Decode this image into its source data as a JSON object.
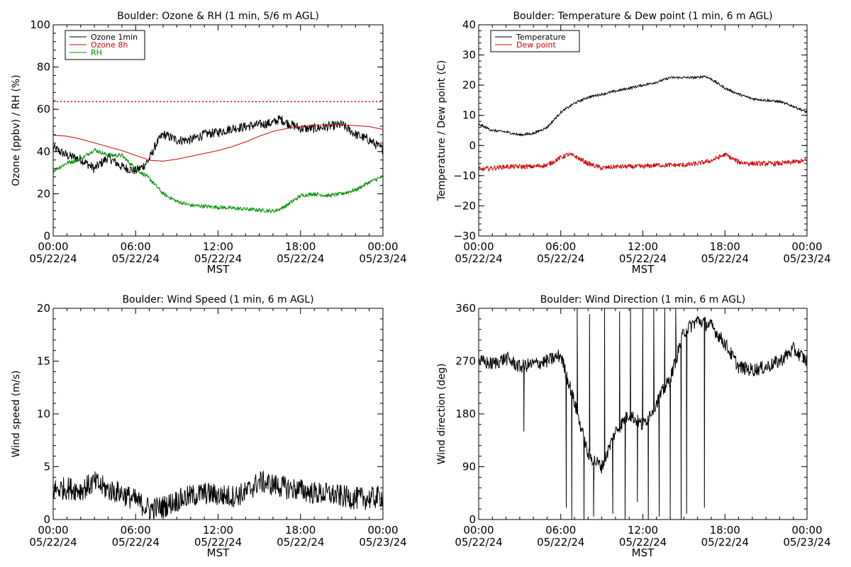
{
  "chart_data": [
    {
      "type": "line",
      "title": "Boulder: Ozone & RH (1 min, 5/6 m AGL)",
      "ylabel": "Ozone (ppbv) / RH (%)",
      "xlabel": "MST",
      "xlim": [
        "00:00 05/22/24",
        "00:00 05/23/24"
      ],
      "ylim": [
        0,
        110
      ],
      "yticks": [
        "0",
        "20",
        "40",
        "60",
        "80",
        "100"
      ],
      "xticks": [
        {
          "time": "00:00",
          "date": "05/22/24"
        },
        {
          "time": "06:00",
          "date": "05/22/24"
        },
        {
          "time": "12:00",
          "date": "05/22/24"
        },
        {
          "time": "18:00",
          "date": "05/22/24"
        },
        {
          "time": "00:00",
          "date": "05/23/24"
        }
      ],
      "reference_line": {
        "y": 70,
        "style": "dotted",
        "color": "#d00000"
      },
      "legend": {
        "placement": "top-left",
        "entries": [
          "Ozone 1min",
          "Ozone 8h",
          "RH"
        ]
      },
      "series": [
        {
          "name": "Ozone 1min",
          "color": "#000000",
          "noise": 2.5,
          "x": [
            0,
            1,
            2,
            3,
            4,
            5,
            6,
            6.5,
            7,
            7.5,
            8,
            9,
            10,
            11,
            12,
            13,
            14,
            15,
            16,
            16.5,
            17,
            18,
            19,
            20,
            21,
            22,
            23,
            24
          ],
          "y": [
            46,
            42,
            40,
            35,
            41,
            36,
            34,
            36,
            40,
            48,
            53,
            50,
            50,
            53,
            54,
            56,
            57,
            58,
            59,
            61,
            59,
            56,
            56,
            57,
            58,
            53,
            50,
            45
          ]
        },
        {
          "name": "Ozone 8h",
          "color": "#d00000",
          "noise": 0,
          "x": [
            0,
            1,
            2,
            3,
            4,
            5,
            6,
            7,
            8,
            9,
            10,
            11,
            12,
            13,
            14,
            15,
            16,
            17,
            18,
            19,
            20,
            21,
            22,
            23,
            24
          ],
          "y": [
            52.5,
            52,
            50.5,
            48.5,
            46.5,
            44.5,
            42,
            39.5,
            39,
            40,
            41.5,
            43,
            44.5,
            46.5,
            49,
            52,
            54.5,
            56,
            57,
            57.5,
            58,
            58,
            57.5,
            57,
            55.5
          ]
        },
        {
          "name": "RH",
          "color": "#009000",
          "noise": 1.0,
          "x": [
            0,
            1,
            2,
            3,
            4,
            5,
            6,
            7,
            8,
            9,
            10,
            11,
            12,
            13,
            14,
            15,
            16,
            16.5,
            17,
            18,
            19,
            20,
            21,
            22,
            23,
            24
          ],
          "y": [
            34,
            38,
            40,
            45,
            42,
            42,
            35,
            30,
            22,
            18,
            16,
            15.5,
            15,
            14.5,
            14,
            13.5,
            13,
            14,
            16,
            21,
            22,
            21,
            22,
            24,
            28,
            31
          ]
        }
      ]
    },
    {
      "type": "line",
      "title": "Boulder: Temperature & Dew point (1 min, 6 m AGL)",
      "ylabel": "Temperature / Dew point (C)",
      "xlabel": "MST",
      "xlim": [
        "00:00 05/22/24",
        "00:00 05/23/24"
      ],
      "ylim": [
        -30,
        40
      ],
      "yticks": [
        "−30",
        "−20",
        "−10",
        "0",
        "10",
        "20",
        "30",
        "40"
      ],
      "xticks": [
        {
          "time": "00:00",
          "date": "05/22/24"
        },
        {
          "time": "06:00",
          "date": "05/22/24"
        },
        {
          "time": "12:00",
          "date": "05/22/24"
        },
        {
          "time": "18:00",
          "date": "05/22/24"
        },
        {
          "time": "00:00",
          "date": "05/23/24"
        }
      ],
      "legend": {
        "placement": "top-left",
        "entries": [
          "Temperature",
          "Dew point"
        ]
      },
      "series": [
        {
          "name": "Temperature",
          "color": "#000000",
          "noise": 0.4,
          "x": [
            0,
            1,
            2,
            3,
            4,
            5,
            6,
            7,
            8,
            9,
            10,
            11,
            12,
            13,
            14,
            15,
            16,
            16.5,
            17,
            18,
            19,
            20,
            21,
            22,
            23,
            24
          ],
          "y": [
            7,
            5,
            4.5,
            3.5,
            4,
            6,
            11,
            14,
            16,
            17,
            18,
            19,
            20,
            21,
            22.5,
            22.5,
            22.5,
            23,
            22,
            19,
            17,
            15.5,
            15,
            14.5,
            13,
            11
          ]
        },
        {
          "name": "Dew point",
          "color": "#d00000",
          "noise": 0.8,
          "x": [
            0,
            1,
            2,
            3,
            4,
            5,
            6,
            6.5,
            7,
            8,
            9,
            10,
            11,
            12,
            13,
            14,
            15,
            16,
            17,
            18,
            19,
            20,
            21,
            22,
            23,
            24
          ],
          "y": [
            -8,
            -7.5,
            -7,
            -7,
            -7,
            -6.5,
            -4,
            -3,
            -3.5,
            -6,
            -7.5,
            -7,
            -7,
            -7,
            -6.5,
            -6.5,
            -6.5,
            -6,
            -5,
            -3,
            -5.5,
            -6,
            -6,
            -6,
            -5.5,
            -5
          ]
        }
      ]
    },
    {
      "type": "line",
      "title": "Boulder: Wind Speed (1 min, 6 m AGL)",
      "ylabel": "Wind speed (m/s)",
      "xlabel": "MST",
      "xlim": [
        "00:00 05/22/24",
        "00:00 05/23/24"
      ],
      "ylim": [
        0,
        20
      ],
      "yticks": [
        "0",
        "5",
        "10",
        "15",
        "20"
      ],
      "xticks": [
        {
          "time": "00:00",
          "date": "05/22/24"
        },
        {
          "time": "06:00",
          "date": "05/22/24"
        },
        {
          "time": "12:00",
          "date": "05/22/24"
        },
        {
          "time": "18:00",
          "date": "05/22/24"
        },
        {
          "time": "00:00",
          "date": "05/23/24"
        }
      ],
      "series": [
        {
          "color": "#000000",
          "noise": 1.1,
          "x": [
            0,
            1,
            2,
            3,
            4,
            5,
            6,
            7,
            8,
            9,
            10,
            11,
            12,
            13,
            14,
            15,
            16,
            17,
            18,
            19,
            20,
            21,
            22,
            23,
            24
          ],
          "y": [
            2.8,
            3,
            2.8,
            3.5,
            2.8,
            2.5,
            1.8,
            1,
            1.2,
            1.8,
            2.2,
            2.5,
            2.3,
            2.2,
            2.5,
            3.6,
            3.3,
            3,
            2.8,
            2.5,
            2.4,
            2.2,
            2,
            2,
            2.2
          ]
        }
      ]
    },
    {
      "type": "line",
      "title": "Boulder: Wind Direction (1 min, 6 m AGL)",
      "ylabel": "Wind direction (deg)",
      "xlabel": "MST",
      "xlim": [
        "00:00 05/22/24",
        "00:00 05/23/24"
      ],
      "ylim": [
        0,
        360
      ],
      "yticks": [
        "0",
        "90",
        "180",
        "270",
        "360"
      ],
      "xticks": [
        {
          "time": "00:00",
          "date": "05/22/24"
        },
        {
          "time": "06:00",
          "date": "05/22/24"
        },
        {
          "time": "12:00",
          "date": "05/22/24"
        },
        {
          "time": "18:00",
          "date": "05/22/24"
        },
        {
          "time": "00:00",
          "date": "05/23/24"
        }
      ],
      "series": [
        {
          "color": "#000000",
          "noise": 12,
          "x": [
            0,
            1,
            2,
            3,
            4,
            5,
            6,
            7,
            8,
            9,
            10,
            11,
            12,
            13,
            14,
            15,
            16,
            17,
            18,
            19,
            20,
            21,
            22,
            23,
            24
          ],
          "y": [
            270,
            265,
            275,
            260,
            265,
            270,
            280,
            200,
            110,
            90,
            150,
            180,
            160,
            200,
            240,
            320,
            340,
            330,
            300,
            260,
            255,
            260,
            270,
            290,
            270
          ],
          "spikes": [
            {
              "x": 3.3,
              "y": 150
            },
            {
              "x": 6.4,
              "y": 20
            },
            {
              "x": 6.8,
              "y": 0
            },
            {
              "x": 7.2,
              "y": 360
            },
            {
              "x": 7.7,
              "y": 0
            },
            {
              "x": 8.1,
              "y": 350
            },
            {
              "x": 8.4,
              "y": 5
            },
            {
              "x": 9.2,
              "y": 360
            },
            {
              "x": 9.8,
              "y": 10
            },
            {
              "x": 10.3,
              "y": 355
            },
            {
              "x": 10.7,
              "y": 0
            },
            {
              "x": 11.1,
              "y": 360
            },
            {
              "x": 11.6,
              "y": 30
            },
            {
              "x": 12.0,
              "y": 355
            },
            {
              "x": 12.4,
              "y": 0
            },
            {
              "x": 12.8,
              "y": 360
            },
            {
              "x": 13.2,
              "y": 5
            },
            {
              "x": 13.6,
              "y": 360
            },
            {
              "x": 14.0,
              "y": 0
            },
            {
              "x": 14.4,
              "y": 360
            },
            {
              "x": 14.8,
              "y": 0
            },
            {
              "x": 15.2,
              "y": 10
            },
            {
              "x": 16.5,
              "y": 20
            }
          ]
        }
      ]
    }
  ]
}
